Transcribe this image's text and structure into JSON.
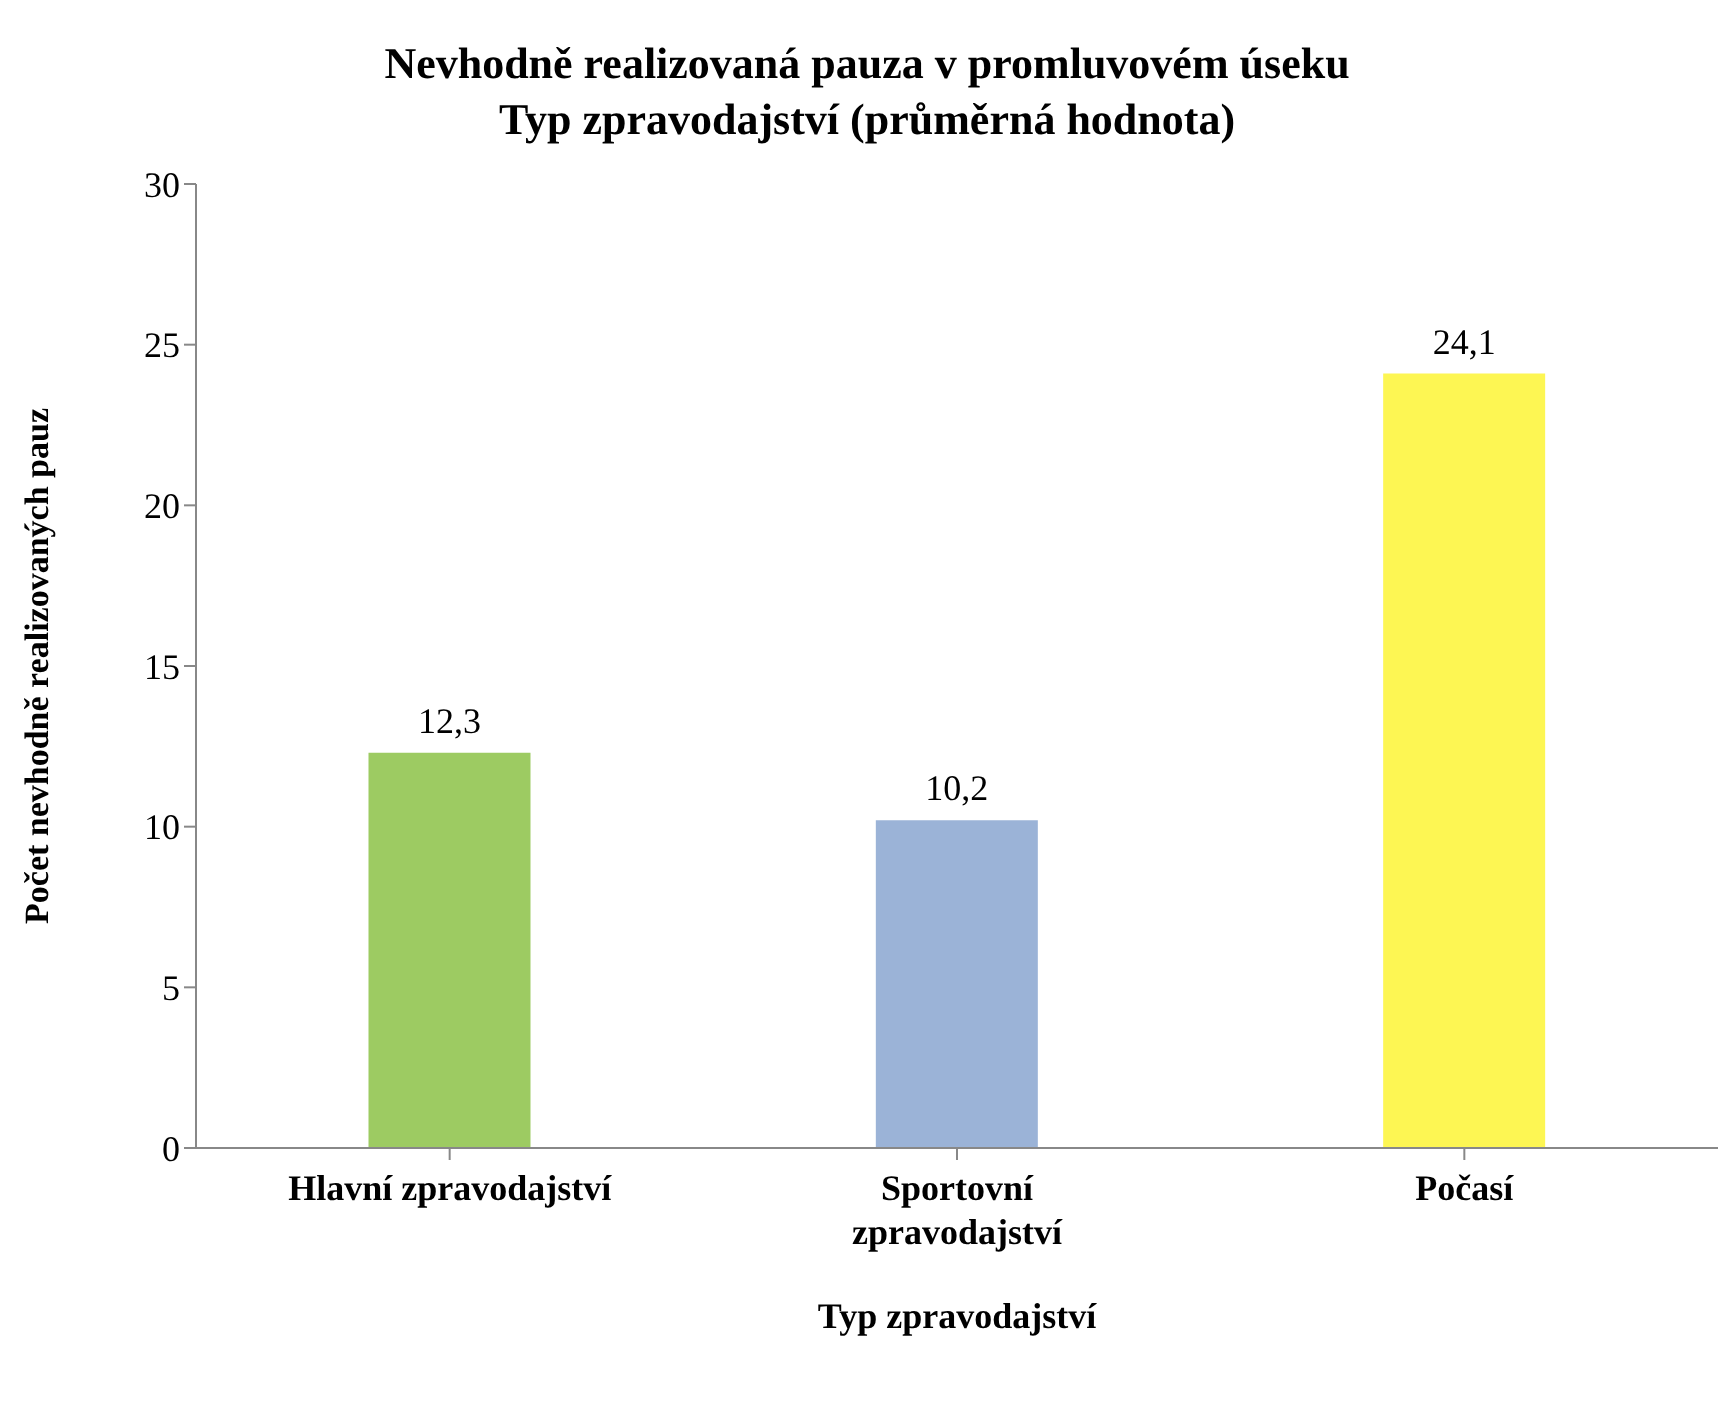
{
  "chart_data": {
    "type": "bar",
    "title": "Nevhodně realizovaná pauza v promluvovém úseku",
    "subtitle": "Typ zpravodajství (průměrná hodnota)",
    "xlabel": "Typ zpravodajství",
    "ylabel": "Počet nevhodně realizovaných pauz",
    "categories": [
      "Hlavní zpravodajství",
      "Sportovní zpravodajství",
      "Počasí"
    ],
    "values": [
      12.3,
      10.2,
      24.1
    ],
    "colors": [
      "#9dcb62",
      "#9bb3d7",
      "#fdf653"
    ],
    "value_labels": [
      "12,3",
      "10,2",
      "24,1"
    ],
    "ylim": [
      0,
      30
    ],
    "yticks": [
      0,
      5,
      10,
      15,
      20,
      25,
      30
    ]
  }
}
